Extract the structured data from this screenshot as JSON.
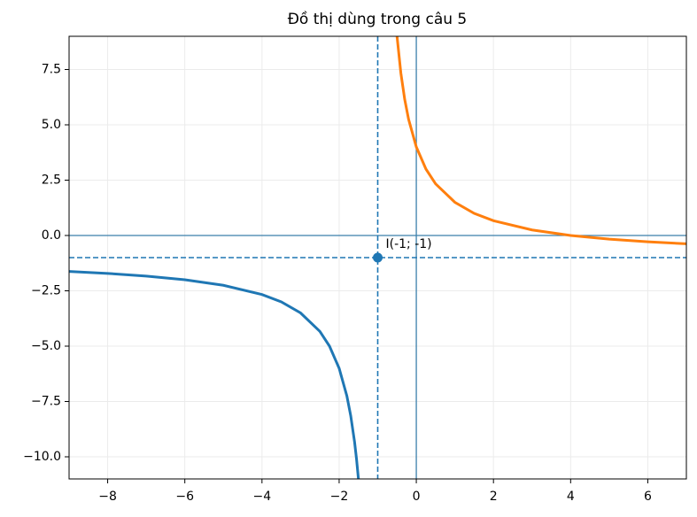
{
  "chart_data": {
    "type": "line",
    "title": "Đồ thị dùng trong câu 5",
    "xlim": [
      -9,
      7
    ],
    "ylim": [
      -11,
      9
    ],
    "xticks": [
      {
        "value": -8,
        "label": "−8"
      },
      {
        "value": -6,
        "label": "−6"
      },
      {
        "value": -4,
        "label": "−4"
      },
      {
        "value": -2,
        "label": "−2"
      },
      0,
      2,
      4,
      6
    ],
    "yticks": [
      {
        "value": -10,
        "label": "−10.0"
      },
      {
        "value": -7.5,
        "label": "−7.5"
      },
      {
        "value": -5,
        "label": "−5.0"
      },
      {
        "value": -2.5,
        "label": "−2.5"
      },
      {
        "value": 0,
        "label": "0.0"
      },
      2.5,
      {
        "value": 5,
        "label": "5.0"
      },
      7.5
    ],
    "grid": true,
    "hline": 0,
    "vline": 0,
    "axis_line_color": "#3b7fab",
    "asymptotes": {
      "x": -1,
      "y": -1,
      "color": "#1f77b4"
    },
    "point": {
      "x": -1,
      "y": -1,
      "label": "I(-1; -1)",
      "color": "#1f77b4"
    },
    "series": [
      {
        "color": "#1f77b4",
        "x": [
          -9,
          -8,
          -7,
          -6,
          -5,
          -4,
          -3.5,
          -3,
          -2.5,
          -2.25,
          -2,
          -1.8,
          -1.7,
          -1.6,
          -1.55,
          -1.5
        ],
        "values": [
          -1.625,
          -1.714,
          -1.833,
          -2,
          -2.25,
          -2.667,
          -3,
          -3.5,
          -4.333,
          -5,
          -6,
          -7.25,
          -8.143,
          -9.333,
          -10.091,
          -11
        ]
      },
      {
        "color": "#ff7f0e",
        "x": [
          -0.5,
          -0.4,
          -0.3,
          -0.2,
          0,
          0.25,
          0.5,
          1,
          1.5,
          2,
          3,
          4,
          5,
          6,
          7
        ],
        "values": [
          9,
          7.333,
          6.143,
          5.25,
          4,
          3,
          2.333,
          1.5,
          1,
          0.667,
          0.25,
          0,
          -0.167,
          -0.286,
          -0.375
        ]
      }
    ]
  }
}
